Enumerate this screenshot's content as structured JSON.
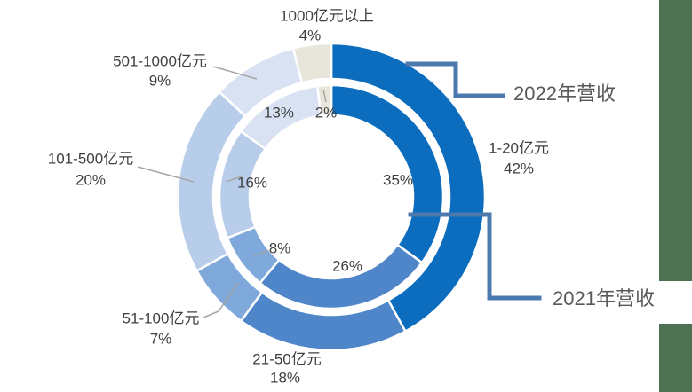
{
  "chart_data": {
    "type": "pie",
    "subtype": "nested-double-donut",
    "title": "",
    "categories": [
      "1-20亿元",
      "21-50亿元",
      "51-100亿元",
      "101-500亿元",
      "501-1000亿元",
      "1000亿元以上"
    ],
    "series": [
      {
        "name": "2022年营收",
        "ring": "outer",
        "values": [
          42,
          18,
          7,
          20,
          9,
          4
        ]
      },
      {
        "name": "2021年营收",
        "ring": "inner",
        "values": [
          35,
          26,
          8,
          16,
          13,
          2
        ]
      }
    ],
    "unit": "%",
    "start_angle_deg": 0,
    "direction": "clockwise",
    "colors": [
      "#0C6CBE",
      "#4E86C9",
      "#7FA8DB",
      "#B7CDEA",
      "#D8E2F2",
      "#E8E5DA"
    ],
    "grid": false,
    "legend_position": "callout-labels"
  },
  "labels": {
    "cat_1_20": {
      "name": "1-20亿元",
      "outer_pct": "42%",
      "inner_pct": "35%"
    },
    "cat_21_50": {
      "name": "21-50亿元",
      "outer_pct": "18%",
      "inner_pct": "26%"
    },
    "cat_51_100": {
      "name": "51-100亿元",
      "outer_pct": "7%",
      "inner_pct": "8%"
    },
    "cat_101_500": {
      "name": "101-500亿元",
      "outer_pct": "20%",
      "inner_pct": "16%"
    },
    "cat_501_1000": {
      "name": "501-1000亿元",
      "outer_pct": "9%",
      "inner_pct": "13%"
    },
    "cat_1000_plus": {
      "name": "1000亿元以上",
      "outer_pct": "4%",
      "inner_pct": "2%"
    }
  },
  "callouts": {
    "outer_series": "2022年营收",
    "inner_series": "2021年营收"
  },
  "colors": {
    "accent_green": "#4C7153",
    "callout_line": "#4C7AAF",
    "leader_line": "#A6A6A6",
    "label_text": "#3F3F3F",
    "series_label_text": "#595959",
    "segment_border": "#FFFFFF"
  }
}
